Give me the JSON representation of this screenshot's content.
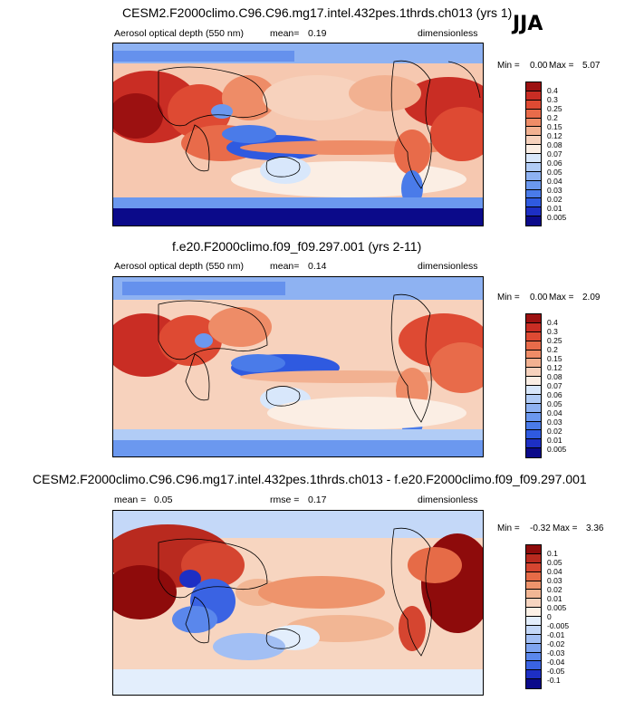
{
  "season": "JJA",
  "colors": {
    "abs_scale": [
      "#0b0a8a",
      "#1d2fc4",
      "#2f5ae0",
      "#4a7be9",
      "#6b98ef",
      "#8eb2f2",
      "#b1ccf6",
      "#d8e7fb",
      "#fbeee4",
      "#f7d2bd",
      "#f2b191",
      "#ee8c67",
      "#e86b4a",
      "#de4a33",
      "#c92d24",
      "#9c1111"
    ],
    "diff_scale": [
      "#0b0a8a",
      "#1d2fc4",
      "#3a63e3",
      "#5a87ec",
      "#7ea4f0",
      "#a2bff4",
      "#c4d8f8",
      "#e3eefc",
      "#fdf1e6",
      "#f7d5c0",
      "#f2b694",
      "#ee946c",
      "#e66b47",
      "#d54530",
      "#b92a1f",
      "#8e0b0b"
    ]
  },
  "chart_data": [
    {
      "type": "heatmap",
      "title": "CESM2.F2000climo.C96.C96.mg17.intel.432pes.1thrds.ch013 (yrs 1)",
      "variable_label": "Aerosol optical depth (550 nm)",
      "stat_label": "mean=",
      "stat_value": "0.19",
      "units": "dimensionless",
      "min_label": "Min =",
      "min": "0.00",
      "max_label": "Max =",
      "max": "5.07",
      "colorbar_labels": [
        "0.4",
        "0.3",
        "0.25",
        "0.2",
        "0.15",
        "0.12",
        "0.08",
        "0.07",
        "0.06",
        "0.05",
        "0.04",
        "0.03",
        "0.02",
        "0.01",
        "0.005"
      ]
    },
    {
      "type": "heatmap",
      "title": "f.e20.F2000climo.f09_f09.297.001 (yrs 2-11)",
      "variable_label": "Aerosol optical depth (550 nm)",
      "stat_label": "mean=",
      "stat_value": "0.14",
      "units": "dimensionless",
      "min_label": "Min =",
      "min": "0.00",
      "max_label": "Max =",
      "max": "2.09",
      "colorbar_labels": [
        "0.4",
        "0.3",
        "0.25",
        "0.2",
        "0.15",
        "0.12",
        "0.08",
        "0.07",
        "0.06",
        "0.05",
        "0.04",
        "0.03",
        "0.02",
        "0.01",
        "0.005"
      ]
    },
    {
      "type": "heatmap",
      "title": "CESM2.F2000climo.C96.C96.mg17.intel.432pes.1thrds.ch013 - f.e20.F2000climo.f09_f09.297.001",
      "stat_label": "mean =",
      "stat_value": "0.05",
      "rmse_label": "rmse =",
      "rmse_value": "0.17",
      "units": "dimensionless",
      "min_label": "Min =",
      "min": "-0.32",
      "max_label": "Max =",
      "max": "3.36",
      "colorbar_labels": [
        "0.1",
        "0.05",
        "0.04",
        "0.03",
        "0.02",
        "0.01",
        "0.005",
        "0",
        "-0.005",
        "-0.01",
        "-0.02",
        "-0.03",
        "-0.04",
        "-0.05",
        "-0.1"
      ]
    }
  ]
}
